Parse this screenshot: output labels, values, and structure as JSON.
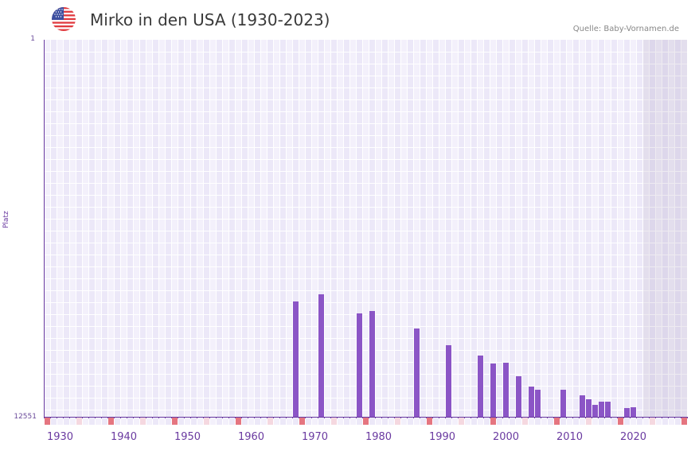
{
  "header": {
    "title": "Mirko in den USA (1930-2023)",
    "source": "Quelle: Baby-Vornamen.de",
    "flag_icon": "us-flag-icon"
  },
  "colors": {
    "bar": "#8b55c6",
    "axis": "#6a3aa0",
    "grid_a": "#f3f0fb",
    "grid_b": "#ece8f8",
    "marker_decade": "#e57580",
    "marker_half": "#f5d8e0",
    "shade": "#e2dded"
  },
  "chart_data": {
    "type": "bar",
    "title": "Mirko in den USA (1930-2023)",
    "xlabel": "",
    "ylabel": "Platz",
    "y_inverted": true,
    "ylim": [
      12551,
      1
    ],
    "y_ticks": [
      "1",
      "12551"
    ],
    "x_range": [
      1928,
      2028
    ],
    "x_ticks": [
      "1930",
      "1940",
      "1950",
      "1960",
      "1970",
      "1980",
      "1990",
      "2000",
      "2010",
      "2020"
    ],
    "shaded_from_year": 2022,
    "grid": true,
    "legend": "none",
    "x": [
      1967,
      1971,
      1977,
      1979,
      1986,
      1991,
      1996,
      1998,
      2000,
      2002,
      2004,
      2005,
      2009,
      2012,
      2013,
      2014,
      2015,
      2016,
      2019,
      2020
    ],
    "values": [
      8693,
      8456,
      9090,
      9010,
      9592,
      10147,
      10490,
      10755,
      10728,
      11177,
      11521,
      11627,
      11627,
      11812,
      11944,
      12128,
      12023,
      12023,
      12234,
      12207
    ]
  }
}
